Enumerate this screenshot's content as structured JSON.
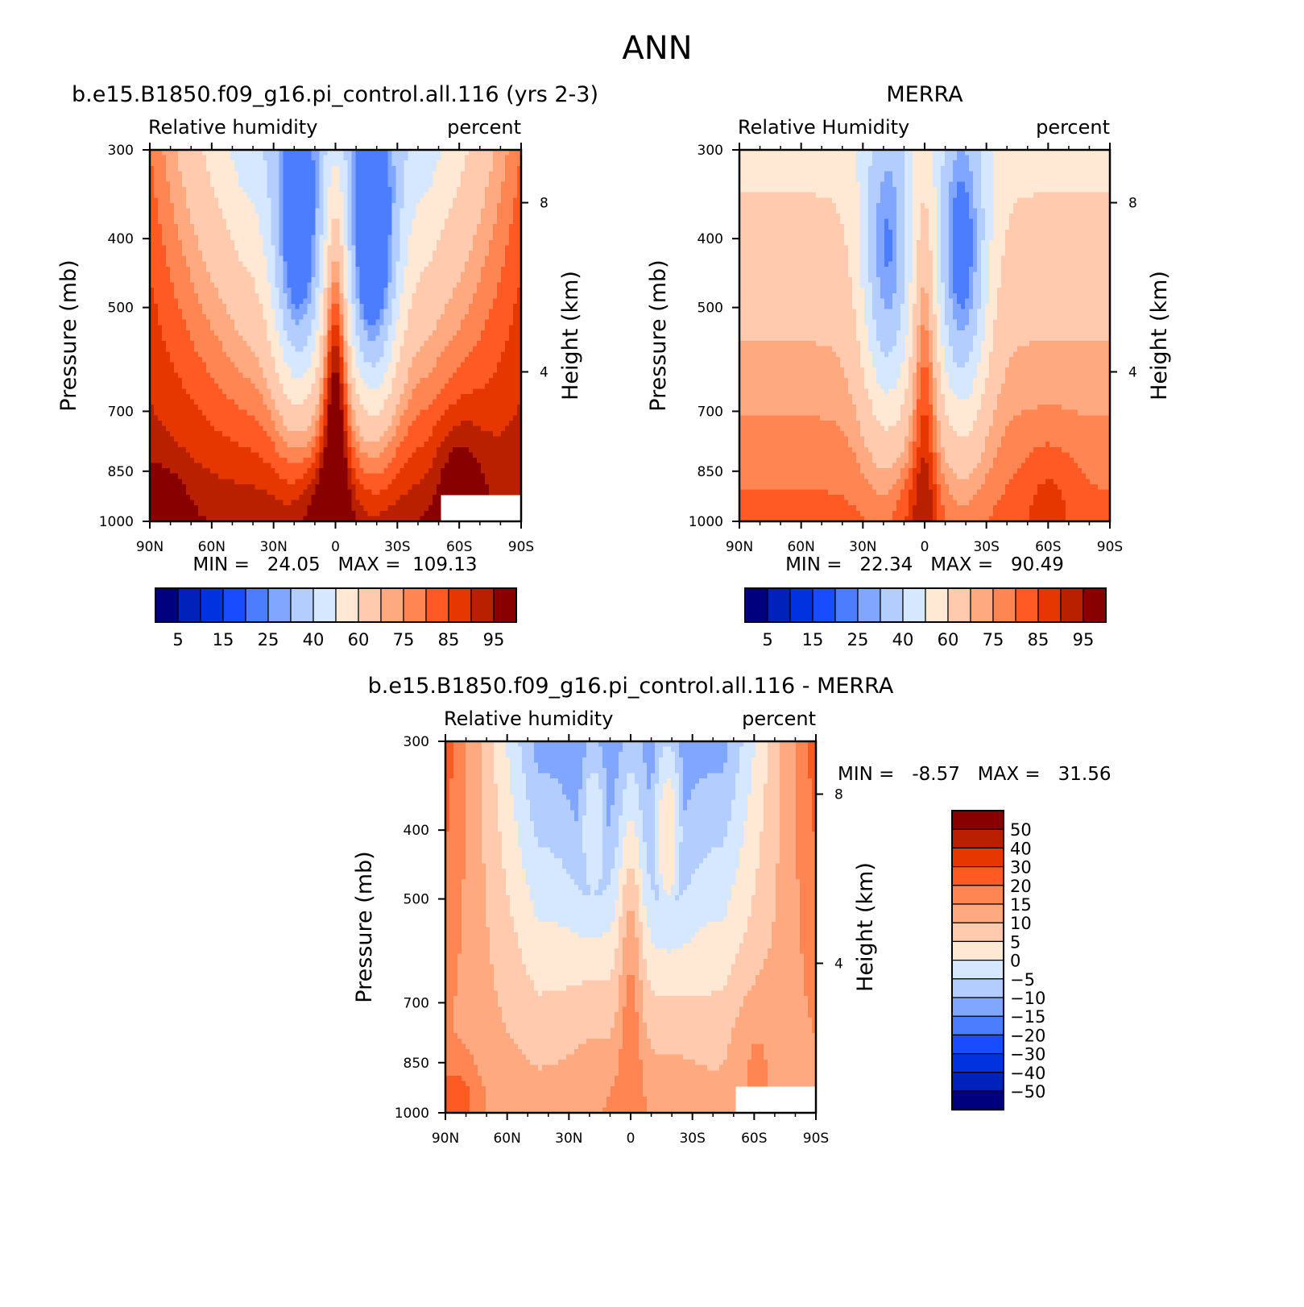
{
  "figure": {
    "title": "ANN"
  },
  "colors": {
    "abs_palette": [
      "#00007f",
      "#0022bb",
      "#0033e0",
      "#1a4cff",
      "#4d7dff",
      "#80a6ff",
      "#b3cdff",
      "#d6e8ff",
      "#ffe9d5",
      "#ffcaad",
      "#ffa980",
      "#ff8552",
      "#ff5a24",
      "#e63700",
      "#b82000",
      "#880000"
    ],
    "diff_palette": [
      "#880000",
      "#b82000",
      "#e63700",
      "#ff5a24",
      "#ff8552",
      "#ffa980",
      "#ffcaad",
      "#ffe9d5",
      "#d6e8ff",
      "#b3cdff",
      "#80a6ff",
      "#4d7dff",
      "#1a4cff",
      "#0033e0",
      "#0022bb",
      "#00007f"
    ]
  },
  "chart_data": [
    {
      "type": "heatmap",
      "title": "b.e15.B1850.f09_g16.pi_control.all.116 (yrs 2-3)",
      "left_string": "Relative humidity",
      "right_string": "percent",
      "ylabel": "Pressure (mb)",
      "ylabel2": "Height (km)",
      "x_tick_labels": [
        "90N",
        "60N",
        "30N",
        "0",
        "30S",
        "60S",
        "90S"
      ],
      "y_tick_labels": [
        "300",
        "400",
        "500",
        "700",
        "850",
        "1000"
      ],
      "y2_tick_labels": [
        "8",
        "4"
      ],
      "ylim": [
        1000,
        300
      ],
      "min_text": "MIN =   24.05   MAX =  109.13",
      "min": 24.05,
      "max": 109.13,
      "colorbar_labels": [
        "5",
        "15",
        "25",
        "40",
        "60",
        "75",
        "85",
        "95"
      ],
      "levels": [
        5,
        10,
        15,
        20,
        25,
        30,
        40,
        50,
        60,
        70,
        75,
        80,
        85,
        90,
        95
      ]
    },
    {
      "type": "heatmap",
      "title": "MERRA",
      "left_string": "Relative Humidity",
      "right_string": "percent",
      "ylabel": "Pressure (mb)",
      "ylabel2": "Height (km)",
      "x_tick_labels": [
        "90N",
        "60N",
        "30N",
        "0",
        "30S",
        "60S",
        "90S"
      ],
      "y_tick_labels": [
        "300",
        "400",
        "500",
        "700",
        "850",
        "1000"
      ],
      "y2_tick_labels": [
        "8",
        "4"
      ],
      "ylim": [
        1000,
        300
      ],
      "min_text": "MIN =   22.34   MAX =   90.49",
      "min": 22.34,
      "max": 90.49,
      "colorbar_labels": [
        "5",
        "15",
        "25",
        "40",
        "60",
        "75",
        "85",
        "95"
      ],
      "levels": [
        5,
        10,
        15,
        20,
        25,
        30,
        40,
        50,
        60,
        70,
        75,
        80,
        85,
        90,
        95
      ]
    },
    {
      "type": "heatmap",
      "title": "b.e15.B1850.f09_g16.pi_control.all.116 - MERRA",
      "left_string": "Relative humidity",
      "right_string": "percent",
      "ylabel": "Pressure (mb)",
      "ylabel2": "Height (km)",
      "x_tick_labels": [
        "90N",
        "60N",
        "30N",
        "0",
        "30S",
        "60S",
        "90S"
      ],
      "y_tick_labels": [
        "300",
        "400",
        "500",
        "700",
        "850",
        "1000"
      ],
      "y2_tick_labels": [
        "8",
        "4"
      ],
      "ylim": [
        1000,
        300
      ],
      "min_text": "MIN =   -8.57   MAX =   31.56",
      "min": -8.57,
      "max": 31.56,
      "colorbar_labels": [
        "50",
        "40",
        "30",
        "20",
        "15",
        "10",
        "5",
        "0",
        "-5",
        "-10",
        "-15",
        "-20",
        "-30",
        "-40",
        "-50"
      ],
      "levels": [
        50,
        40,
        30,
        20,
        15,
        10,
        5,
        0,
        -5,
        -10,
        -15,
        -20,
        -30,
        -40,
        -50
      ]
    }
  ]
}
